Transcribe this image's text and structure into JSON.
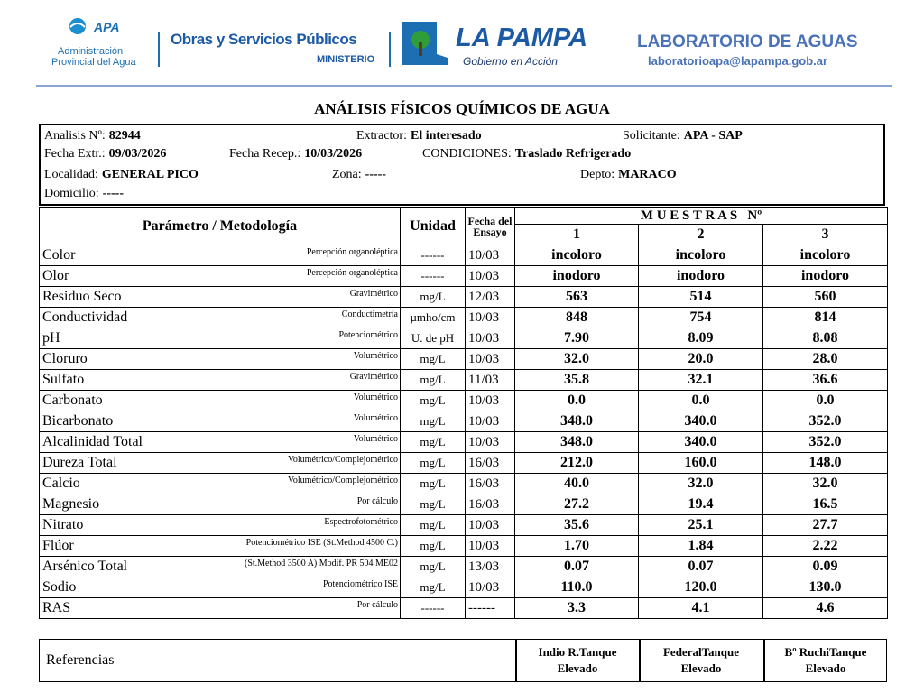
{
  "header": {
    "apa": {
      "mark": "APA",
      "line1": "Administración",
      "line2": "Provincial del Agua"
    },
    "ministry": {
      "name": "Obras y Servicios Públicos",
      "sub": "MINISTERIO"
    },
    "province": {
      "name": "LA PAMPA",
      "slogan": "Gobierno en Acción"
    },
    "lab": {
      "name": "LABORATORIO DE AGUAS",
      "email": "laboratorioapa@lapampa.gob.ar"
    }
  },
  "title": "ANÁLISIS FÍSICOS QUÍMICOS DE AGUA",
  "info": [
    [
      {
        "label": "Analisis Nº:",
        "value": "82944"
      },
      {
        "label": "Extractor:",
        "value": "El interesado"
      },
      {
        "label": "Solicitante:",
        "value": "APA - SAP"
      }
    ],
    [
      {
        "label": "Fecha Extr.:",
        "value": "09/03/2026"
      },
      {
        "label": "Fecha Recep.:",
        "value": "10/03/2026"
      },
      {
        "label": "CONDICIONES:",
        "value": "Traslado Refrigerado"
      }
    ],
    [
      {
        "label": "Localidad:",
        "value": "GENERAL PICO"
      },
      {
        "label": "Zona:",
        "value": "-----"
      },
      {
        "label": "Depto:",
        "value": "MARACO"
      }
    ],
    [
      {
        "label": "Domicilio:",
        "value": "-----"
      }
    ]
  ],
  "table": {
    "headers": {
      "parameter": "Parámetro / Metodología",
      "unit": "Unidad",
      "date": "Fecha del Ensayo",
      "samples": "M U E S T R A S   Nº",
      "sample_numbers": [
        "1",
        "2",
        "3"
      ]
    },
    "rows": [
      [
        "Color",
        "Percepción organoléptica",
        "------",
        "10/03",
        "incoloro",
        "incoloro",
        "incoloro"
      ],
      [
        "Olor",
        "Percepción organoléptica",
        "------",
        "10/03",
        "inodoro",
        "inodoro",
        "inodoro"
      ],
      [
        "Residuo Seco",
        "Gravimétrico",
        "mg/L",
        "12/03",
        "563",
        "514",
        "560"
      ],
      [
        "Conductividad",
        "Conductimetría",
        "µmho/cm",
        "10/03",
        "848",
        "754",
        "814"
      ],
      [
        "pH",
        "Potenciométrico",
        "U. de pH",
        "10/03",
        "7.90",
        "8.09",
        "8.08"
      ],
      [
        "Cloruro",
        "Volumétrico",
        "mg/L",
        "10/03",
        "32.0",
        "20.0",
        "28.0"
      ],
      [
        "Sulfato",
        "Gravimétrico",
        "mg/L",
        "11/03",
        "35.8",
        "32.1",
        "36.6"
      ],
      [
        "Carbonato",
        "Volumétrico",
        "mg/L",
        "10/03",
        "0.0",
        "0.0",
        "0.0"
      ],
      [
        "Bicarbonato",
        "Volumétrico",
        "mg/L",
        "10/03",
        "348.0",
        "340.0",
        "352.0"
      ],
      [
        "Alcalinidad Total",
        "Volumétrico",
        "mg/L",
        "10/03",
        "348.0",
        "340.0",
        "352.0"
      ],
      [
        "Dureza Total",
        "Volumétrico/Complejométrico",
        "mg/L",
        "16/03",
        "212.0",
        "160.0",
        "148.0"
      ],
      [
        "Calcio",
        "Volumétrico/Complejométrico",
        "mg/L",
        "16/03",
        "40.0",
        "32.0",
        "32.0"
      ],
      [
        "Magnesio",
        "Por cálculo",
        "mg/L",
        "16/03",
        "27.2",
        "19.4",
        "16.5"
      ],
      [
        "Nitrato",
        "Espectrofotométrico",
        "mg/L",
        "10/03",
        "35.6",
        "25.1",
        "27.7"
      ],
      [
        "Flúor",
        "Potenciométrico ISE (St.Method 4500 C.)",
        "mg/L",
        "10/03",
        "1.70",
        "1.84",
        "2.22"
      ],
      [
        "Arsénico Total",
        "(St.Method 3500 A) Modif. PR 504 ME02",
        "mg/L",
        "13/03",
        "0.07",
        "0.07",
        "0.09"
      ],
      [
        "Sodio",
        "Potenciométrico ISE",
        "mg/L",
        "10/03",
        "110.0",
        "120.0",
        "130.0"
      ],
      [
        "RAS",
        "Por cálculo",
        "------",
        "------",
        "3.3",
        "4.1",
        "4.6"
      ]
    ]
  },
  "references": {
    "label": "Referencias",
    "samples": [
      "Indio R.Tanque Elevado",
      "FederalTanque Elevado",
      "Bº RuchiTanque Elevado"
    ]
  }
}
